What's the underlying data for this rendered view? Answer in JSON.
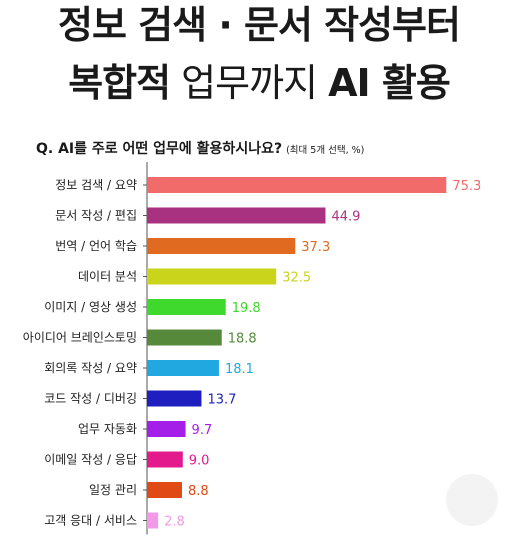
{
  "headline": {
    "line1": "정보 검색 · 문서 작성부터",
    "line2_bold": "복합적",
    "line2_light": "업무까지",
    "line2_end": "AI 활용"
  },
  "question": {
    "text": "Q. AI를 주로 어떤 업무에 활용하시나요?",
    "note": "(최대 5개 선택, %)"
  },
  "chart_data": {
    "type": "bar",
    "orientation": "horizontal",
    "categories": [
      "정보 검색 / 요약",
      "문서 작성 / 편집",
      "번역 / 언어 학습",
      "데이터 분석",
      "이미지 / 영상 생성",
      "아이디어 브레인스토밍",
      "회의록 작성 / 요약",
      "코드 작성 / 디버깅",
      "업무 자동화",
      "이메일 작성 / 응답",
      "일정 관리",
      "고객 응대 / 서비스"
    ],
    "values": [
      75.3,
      44.9,
      37.3,
      32.5,
      19.8,
      18.8,
      18.1,
      13.7,
      9.7,
      9.0,
      8.8,
      2.8
    ],
    "value_labels": [
      "75.3",
      "44.9",
      "37.3",
      "32.5",
      "19.8",
      "18.8",
      "18.1",
      "13.7",
      "9.7",
      "9.0",
      "8.8",
      "2.8"
    ],
    "colors": [
      "#f26b6b",
      "#a8327f",
      "#e06a1f",
      "#c9d41a",
      "#3fd82d",
      "#568a3a",
      "#22a8e0",
      "#1f1fbf",
      "#a420e8",
      "#e21a8c",
      "#e04a14",
      "#f29ae8"
    ],
    "label_colors": [
      "#f26b6b",
      "#a8327f",
      "#e06a1f",
      "#c9d41a",
      "#3fd82d",
      "#568a3a",
      "#22a8e0",
      "#1f1fbf",
      "#a420e8",
      "#e21a8c",
      "#e04a14",
      "#f29ae8"
    ],
    "xlim": [
      0,
      80
    ]
  }
}
